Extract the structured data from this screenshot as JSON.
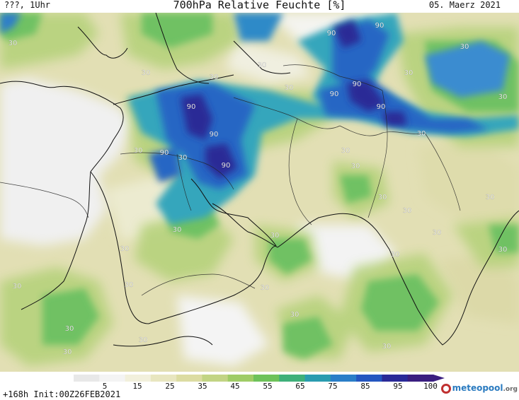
{
  "header": {
    "left": "???, 1Uhr",
    "title": "700hPa Relative Feuchte [%]",
    "date": "05. Maerz 2021"
  },
  "footer": {
    "init": "+168h  Init:00Z26FEB2021",
    "logo_main": "meteopool",
    "logo_suffix": ".org"
  },
  "colorbar": {
    "ticks": [
      "5",
      "15",
      "25",
      "35",
      "45",
      "55",
      "65",
      "75",
      "85",
      "95",
      "100"
    ],
    "colors": [
      "#e8e8e8",
      "#f4f4f4",
      "#f2f0dc",
      "#e8e6c0",
      "#dcdca2",
      "#c2d484",
      "#9fcc66",
      "#6ec25a",
      "#3fb07a",
      "#2a9cb0",
      "#2a7ec8",
      "#2456c0",
      "#2a2a98",
      "#3a1e80"
    ]
  },
  "map": {
    "contour_labels": [
      {
        "text": "30",
        "pos": [
          18,
          46
        ]
      },
      {
        "text": "30",
        "pos": [
          206,
          88
        ]
      },
      {
        "text": "30",
        "pos": [
          370,
          77
        ]
      },
      {
        "text": "30",
        "pos": [
          408,
          109
        ]
      },
      {
        "text": "30",
        "pos": [
          302,
          94
        ]
      },
      {
        "text": "90",
        "pos": [
          468,
          32
        ]
      },
      {
        "text": "90",
        "pos": [
          536,
          21
        ]
      },
      {
        "text": "90",
        "pos": [
          504,
          104
        ]
      },
      {
        "text": "90",
        "pos": [
          472,
          118
        ]
      },
      {
        "text": "90",
        "pos": [
          538,
          136
        ]
      },
      {
        "text": "30",
        "pos": [
          656,
          51
        ]
      },
      {
        "text": "30",
        "pos": [
          577,
          88
        ]
      },
      {
        "text": "30",
        "pos": [
          710,
          122
        ]
      },
      {
        "text": "90",
        "pos": [
          270,
          136
        ]
      },
      {
        "text": "90",
        "pos": [
          302,
          175
        ]
      },
      {
        "text": "90",
        "pos": [
          232,
          201
        ]
      },
      {
        "text": "90",
        "pos": [
          319,
          219
        ]
      },
      {
        "text": "30",
        "pos": [
          195,
          198
        ]
      },
      {
        "text": "30",
        "pos": [
          258,
          208
        ]
      },
      {
        "text": "30",
        "pos": [
          488,
          198
        ]
      },
      {
        "text": "30",
        "pos": [
          502,
          220
        ]
      },
      {
        "text": "30",
        "pos": [
          595,
          174
        ]
      },
      {
        "text": "30",
        "pos": [
          540,
          264
        ]
      },
      {
        "text": "30",
        "pos": [
          575,
          283
        ]
      },
      {
        "text": "30",
        "pos": [
          692,
          264
        ]
      },
      {
        "text": "30",
        "pos": [
          250,
          310
        ]
      },
      {
        "text": "30",
        "pos": [
          176,
          337
        ]
      },
      {
        "text": "30",
        "pos": [
          388,
          318
        ]
      },
      {
        "text": "30",
        "pos": [
          617,
          314
        ]
      },
      {
        "text": "30",
        "pos": [
          558,
          345
        ]
      },
      {
        "text": "30",
        "pos": [
          710,
          338
        ]
      },
      {
        "text": "30",
        "pos": [
          24,
          390
        ]
      },
      {
        "text": "30",
        "pos": [
          182,
          388
        ]
      },
      {
        "text": "30",
        "pos": [
          374,
          392
        ]
      },
      {
        "text": "30",
        "pos": [
          416,
          430
        ]
      },
      {
        "text": "30",
        "pos": [
          98,
          450
        ]
      },
      {
        "text": "30",
        "pos": [
          202,
          466
        ]
      },
      {
        "text": "30",
        "pos": [
          95,
          483
        ]
      },
      {
        "text": "30",
        "pos": [
          546,
          475
        ]
      }
    ]
  }
}
